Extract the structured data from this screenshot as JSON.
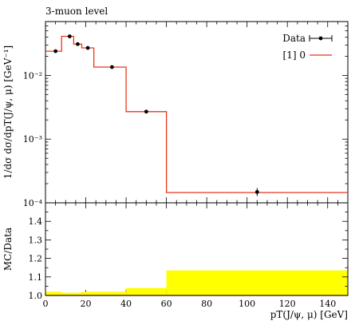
{
  "chart_data": [
    {
      "type": "line",
      "title": "3-muon level",
      "ylabel": "1/dσ dσ/dpT(J/ψ, μ) [GeV⁻¹]",
      "yscale": "log",
      "ylim": [
        0.0001,
        0.07
      ],
      "xlim": [
        0,
        150
      ],
      "ytick_labels": [
        "10⁻²",
        "10⁻³",
        "10⁻⁴"
      ],
      "ytick_values": [
        0.01,
        0.001,
        0.0001
      ],
      "legend": {
        "position": "top-right",
        "entries": [
          "Data",
          "[1] 0"
        ]
      },
      "colors": {
        "mc": "#e8391c",
        "data": "#000000",
        "band": "#ffff00"
      },
      "series": [
        {
          "name": "Data",
          "kind": "points",
          "x": [
            5,
            12,
            16,
            21,
            33,
            50,
            105
          ],
          "y": [
            0.024,
            0.041,
            0.031,
            0.027,
            0.0135,
            0.0027,
            0.000148
          ],
          "err_low": [
            0.024,
            0.041,
            0.031,
            0.027,
            0.0135,
            0.0027,
            0.000128
          ],
          "err_high": [
            0.024,
            0.041,
            0.031,
            0.027,
            0.0135,
            0.0027,
            0.00017
          ]
        },
        {
          "name": "[1] 0",
          "kind": "histogram",
          "edges": [
            0,
            8,
            14,
            18,
            24,
            40,
            60,
            150
          ],
          "values": [
            0.024,
            0.041,
            0.031,
            0.027,
            0.0135,
            0.0027,
            0.000145
          ]
        }
      ]
    },
    {
      "type": "area",
      "ylabel": "MC/Data",
      "xlabel": "pT(J/ψ, μ) [GeV]",
      "xlim": [
        0,
        150
      ],
      "ylim": [
        1.0,
        1.5
      ],
      "xtick_labels": [
        "0",
        "20",
        "40",
        "60",
        "80",
        "100",
        "120",
        "140"
      ],
      "xtick_values": [
        0,
        20,
        40,
        60,
        80,
        100,
        120,
        140
      ],
      "ytick_labels": [
        "1.0",
        "1.1",
        "1.2",
        "1.3",
        "1.4"
      ],
      "ytick_values": [
        1.0,
        1.1,
        1.2,
        1.3,
        1.4
      ],
      "band": {
        "edges": [
          0,
          8,
          14,
          18,
          24,
          40,
          60,
          150
        ],
        "upper": [
          1.02,
          1.015,
          1.015,
          1.02,
          1.02,
          1.04,
          1.135
        ]
      },
      "ratio_line": 1.0
    }
  ]
}
